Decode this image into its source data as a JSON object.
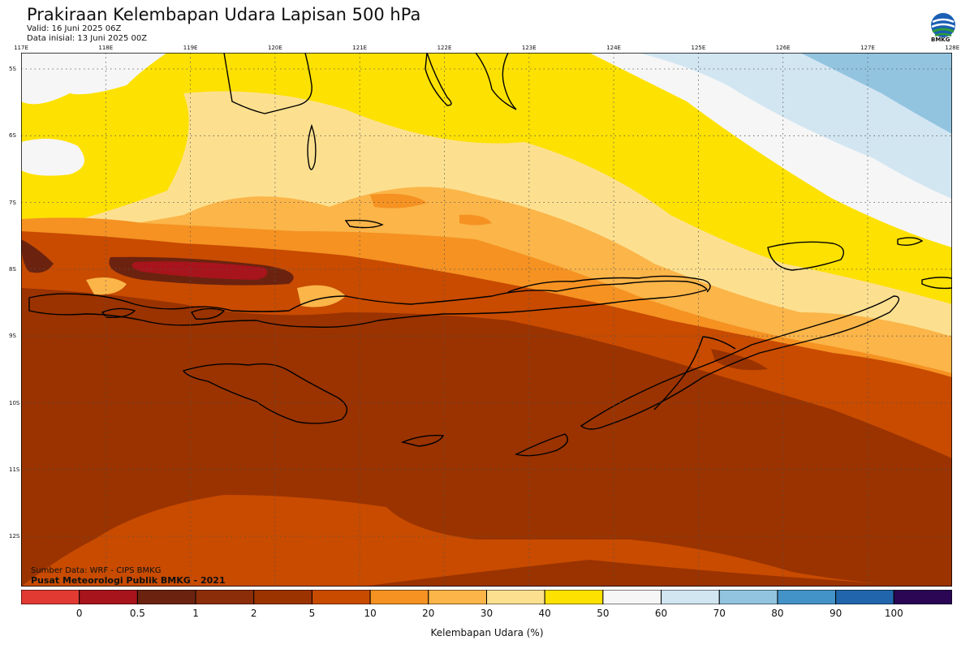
{
  "header": {
    "title": "Prakiraan Kelembapan Udara Lapisan 500 hPa",
    "valid": "Valid: 16 Juni 2025 06Z",
    "initial": "Data inisial: 13 Juni 2025 00Z"
  },
  "logo": {
    "icon": "bmkg-logo-icon",
    "text": "BMKG"
  },
  "axes": {
    "longitudes": [
      "117E",
      "118E",
      "119E",
      "120E",
      "121E",
      "122E",
      "123E",
      "124E",
      "125E",
      "126E",
      "127E",
      "128E"
    ],
    "latitudes": [
      "5S",
      "6S",
      "7S",
      "8S",
      "9S",
      "10S",
      "11S",
      "12S"
    ]
  },
  "footer": {
    "source": "Sumber Data: WRF - CIPS BMKG",
    "credit": "Pusat Meteorologi Publik BMKG - 2021"
  },
  "legend": {
    "title": "Kelembapan Udara (%)",
    "ticks": [
      "0",
      "0.5",
      "1",
      "2",
      "5",
      "10",
      "20",
      "30",
      "40",
      "50",
      "60",
      "70",
      "80",
      "90",
      "100"
    ],
    "colors": [
      "#e03a32",
      "#a8141c",
      "#6b230f",
      "#8b2d08",
      "#9a3300",
      "#c84b00",
      "#f59222",
      "#fbb549",
      "#fde08f",
      "#fde100",
      "#f6f6f6",
      "#d2e6f2",
      "#92c4e0",
      "#4393c8",
      "#2166ac",
      "#0d2e64",
      "#2a0654"
    ]
  }
}
